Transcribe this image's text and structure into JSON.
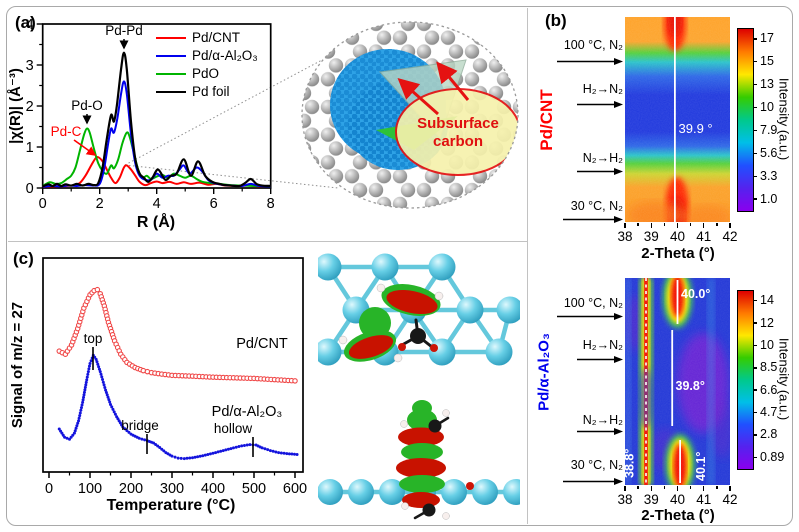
{
  "panels": {
    "a": {
      "tag": "(a)",
      "inset": {
        "line1": "Subsurface",
        "line2": "carbon",
        "text_color": "#e01010"
      }
    },
    "b": {
      "tag": "(b)"
    },
    "c": {
      "tag": "(c)"
    }
  },
  "chart_data": [
    {
      "id": "exafs",
      "type": "line",
      "panel": "a",
      "xlabel": "R (Å)",
      "ylabel": "|χ(R)| (Å⁻³)",
      "xlim": [
        0,
        8
      ],
      "ylim": [
        0,
        4
      ],
      "xticks": [
        0,
        2,
        4,
        6,
        8
      ],
      "yticks": [
        0,
        1,
        2,
        3,
        4
      ],
      "legend_position": "top-right",
      "series": [
        {
          "name": "Pd/CNT",
          "color": "#ff0000",
          "points": [
            [
              0,
              0.03
            ],
            [
              0.4,
              0.04
            ],
            [
              0.8,
              0.05
            ],
            [
              1.1,
              0.07
            ],
            [
              1.3,
              0.12
            ],
            [
              1.5,
              0.3
            ],
            [
              1.7,
              0.55
            ],
            [
              1.85,
              0.72
            ],
            [
              1.95,
              0.75
            ],
            [
              2.1,
              0.65
            ],
            [
              2.25,
              0.45
            ],
            [
              2.4,
              0.25
            ],
            [
              2.55,
              0.12
            ],
            [
              2.7,
              0.25
            ],
            [
              2.85,
              0.5
            ],
            [
              2.95,
              0.55
            ],
            [
              3.1,
              0.45
            ],
            [
              3.25,
              0.3
            ],
            [
              3.4,
              0.15
            ],
            [
              3.6,
              0.07
            ],
            [
              3.8,
              0.12
            ],
            [
              4.0,
              0.16
            ],
            [
              4.2,
              0.12
            ],
            [
              4.45,
              0.15
            ],
            [
              4.7,
              0.1
            ],
            [
              4.95,
              0.14
            ],
            [
              5.2,
              0.1
            ],
            [
              5.5,
              0.13
            ],
            [
              5.8,
              0.08
            ],
            [
              6.1,
              0.1
            ],
            [
              6.4,
              0.06
            ],
            [
              6.8,
              0.05
            ],
            [
              7.2,
              0.06
            ],
            [
              7.6,
              0.04
            ],
            [
              8,
              0.04
            ]
          ]
        },
        {
          "name": "Pd/α-Al₂O₃",
          "color": "#0000ee",
          "points": [
            [
              0,
              0.03
            ],
            [
              0.3,
              0.05
            ],
            [
              0.6,
              0.04
            ],
            [
              0.9,
              0.06
            ],
            [
              1.2,
              0.05
            ],
            [
              1.5,
              0.07
            ],
            [
              1.8,
              0.06
            ],
            [
              2.0,
              0.1
            ],
            [
              2.15,
              0.45
            ],
            [
              2.3,
              1.1
            ],
            [
              2.4,
              1.45
            ],
            [
              2.5,
              1.35
            ],
            [
              2.62,
              1.7
            ],
            [
              2.75,
              2.3
            ],
            [
              2.85,
              2.6
            ],
            [
              2.95,
              2.3
            ],
            [
              3.1,
              1.3
            ],
            [
              3.25,
              0.6
            ],
            [
              3.4,
              0.3
            ],
            [
              3.6,
              0.2
            ],
            [
              3.8,
              0.2
            ],
            [
              4.0,
              0.35
            ],
            [
              4.2,
              0.25
            ],
            [
              4.4,
              0.3
            ],
            [
              4.6,
              0.3
            ],
            [
              4.8,
              0.45
            ],
            [
              4.95,
              0.55
            ],
            [
              5.15,
              0.35
            ],
            [
              5.4,
              0.5
            ],
            [
              5.6,
              0.4
            ],
            [
              5.8,
              0.2
            ],
            [
              6.0,
              0.12
            ],
            [
              6.3,
              0.08
            ],
            [
              6.6,
              0.06
            ],
            [
              7.0,
              0.05
            ],
            [
              7.3,
              0.1
            ],
            [
              7.6,
              0.05
            ],
            [
              8,
              0.04
            ]
          ]
        },
        {
          "name": "PdO",
          "color": "#00b400",
          "points": [
            [
              0,
              0.05
            ],
            [
              0.25,
              0.14
            ],
            [
              0.45,
              0.1
            ],
            [
              0.65,
              0.12
            ],
            [
              0.85,
              0.22
            ],
            [
              1.0,
              0.3
            ],
            [
              1.15,
              0.5
            ],
            [
              1.3,
              0.9
            ],
            [
              1.45,
              1.3
            ],
            [
              1.55,
              1.45
            ],
            [
              1.65,
              1.35
            ],
            [
              1.8,
              0.95
            ],
            [
              1.95,
              0.6
            ],
            [
              2.1,
              0.42
            ],
            [
              2.25,
              0.35
            ],
            [
              2.4,
              0.55
            ],
            [
              2.5,
              0.48
            ],
            [
              2.65,
              0.7
            ],
            [
              2.8,
              1.1
            ],
            [
              2.95,
              1.35
            ],
            [
              3.05,
              1.25
            ],
            [
              3.2,
              0.85
            ],
            [
              3.35,
              0.45
            ],
            [
              3.5,
              0.25
            ],
            [
              3.65,
              0.3
            ],
            [
              3.8,
              0.22
            ],
            [
              4.0,
              0.28
            ],
            [
              4.2,
              0.32
            ],
            [
              4.4,
              0.25
            ],
            [
              4.6,
              0.35
            ],
            [
              4.8,
              0.3
            ],
            [
              5.0,
              0.25
            ],
            [
              5.2,
              0.3
            ],
            [
              5.4,
              0.22
            ],
            [
              5.6,
              0.15
            ],
            [
              5.9,
              0.12
            ],
            [
              6.2,
              0.1
            ],
            [
              6.6,
              0.07
            ],
            [
              7.0,
              0.06
            ],
            [
              7.5,
              0.05
            ],
            [
              8,
              0.04
            ]
          ]
        },
        {
          "name": "Pd foil",
          "color": "#000000",
          "points": [
            [
              0,
              0.04
            ],
            [
              0.2,
              0.09
            ],
            [
              0.35,
              0.05
            ],
            [
              0.5,
              0.1
            ],
            [
              0.65,
              0.05
            ],
            [
              0.8,
              0.09
            ],
            [
              1.0,
              0.06
            ],
            [
              1.2,
              0.1
            ],
            [
              1.4,
              0.06
            ],
            [
              1.6,
              0.1
            ],
            [
              1.8,
              0.07
            ],
            [
              1.95,
              0.12
            ],
            [
              2.1,
              0.5
            ],
            [
              2.25,
              1.2
            ],
            [
              2.4,
              1.78
            ],
            [
              2.5,
              1.62
            ],
            [
              2.6,
              2.0
            ],
            [
              2.75,
              2.9
            ],
            [
              2.85,
              3.3
            ],
            [
              2.95,
              2.9
            ],
            [
              3.1,
              1.6
            ],
            [
              3.25,
              0.7
            ],
            [
              3.4,
              0.35
            ],
            [
              3.55,
              0.25
            ],
            [
              3.7,
              0.15
            ],
            [
              3.85,
              0.25
            ],
            [
              4.05,
              0.45
            ],
            [
              4.3,
              0.2
            ],
            [
              4.5,
              0.3
            ],
            [
              4.7,
              0.35
            ],
            [
              4.95,
              0.7
            ],
            [
              5.2,
              0.3
            ],
            [
              5.45,
              0.65
            ],
            [
              5.7,
              0.3
            ],
            [
              5.95,
              0.15
            ],
            [
              6.2,
              0.1
            ],
            [
              6.4,
              0.07
            ],
            [
              6.6,
              0.06
            ],
            [
              6.9,
              0.05
            ],
            [
              7.1,
              0.12
            ],
            [
              7.3,
              0.22
            ],
            [
              7.5,
              0.1
            ],
            [
              7.7,
              0.06
            ],
            [
              8,
              0.05
            ]
          ]
        }
      ],
      "peak_annotations": [
        {
          "text": "Pd-Pd",
          "x": 2.85,
          "color": "#000000"
        },
        {
          "text": "Pd-O",
          "x": 1.55,
          "color": "#000000"
        },
        {
          "text": "Pd-C",
          "x": 1.95,
          "color": "#ff0000"
        }
      ]
    },
    {
      "id": "xrd-pdcnt",
      "type": "heatmap",
      "panel": "b",
      "sample": "Pd/CNT",
      "sample_color": "#ff0000",
      "xlabel": "2-Theta (°)",
      "xlim": [
        38,
        42
      ],
      "xticks": [
        38,
        39,
        40,
        41,
        42
      ],
      "conditions": [
        "100 °C, N₂",
        "H₂→N₂",
        "N₂→H₂",
        "30 °C, N₂"
      ],
      "marked_peaks": [
        {
          "label": "39.9 °",
          "two_theta": 39.9
        }
      ],
      "features": [
        "intense Pd(111) reflection near 39.9° (red) under N₂ segments at top and bottom",
        "intensity collapses to low (blue) band in the middle H₂ segment"
      ],
      "colorbar": {
        "label": "Intensity (a.u.)",
        "ticks": [
          "17",
          "15",
          "13",
          "10",
          "7.9",
          "5.6",
          "3.3",
          "1.0"
        ],
        "colors_top_to_bottom": [
          "#dd0000",
          "#ff7a00",
          "#ffe800",
          "#35cc00",
          "#00c98c",
          "#00bfe8",
          "#2050ff",
          "#5522ee",
          "#8a00ee"
        ]
      }
    },
    {
      "id": "xrd-pdalumina",
      "type": "heatmap",
      "panel": "b",
      "sample": "Pd/α-Al₂O₃",
      "sample_color": "#0000ee",
      "xlabel": "2-Theta (°)",
      "xlim": [
        38,
        42
      ],
      "xticks": [
        38,
        39,
        40,
        41,
        42
      ],
      "conditions": [
        "100 °C, N₂",
        "H₂→N₂",
        "N₂→H₂",
        "30 °C, N₂"
      ],
      "marked_peaks": [
        {
          "label": "40.0°",
          "two_theta": 40.0
        },
        {
          "label": "39.8°",
          "two_theta": 39.8
        },
        {
          "label": "38.8°",
          "two_theta": 38.8
        },
        {
          "label": "40.1°",
          "two_theta": 40.1
        }
      ],
      "features": [
        "sharp α-Al₂O₃ line at 38.8° persists through all segments",
        "Pd(111) spot at 40.0–40.1° under N₂, shifted to 39.8° in H₂ segment"
      ],
      "colorbar": {
        "label": "Intensity (a.u.)",
        "ticks": [
          "14",
          "12",
          "10",
          "8.5",
          "6.6",
          "4.7",
          "2.8",
          "0.89"
        ],
        "colors_top_to_bottom": [
          "#dd0000",
          "#ff7a00",
          "#ffe800",
          "#35cc00",
          "#00c98c",
          "#00bfe8",
          "#2050ff",
          "#5522ee",
          "#8a00ee"
        ]
      }
    },
    {
      "id": "tpd",
      "type": "scatter",
      "panel": "c",
      "xlabel": "Temperature (°C)",
      "ylabel": "Signal of m/z = 27",
      "xlim": [
        0,
        620
      ],
      "ylim": [
        0,
        1.08
      ],
      "xticks": [
        0,
        100,
        200,
        300,
        400,
        500,
        600
      ],
      "series": [
        {
          "name": "Pd/CNT",
          "color": "#f04848",
          "marker": "open-circle",
          "points": [
            [
              25,
              0.57
            ],
            [
              40,
              0.555
            ],
            [
              55,
              0.6
            ],
            [
              70,
              0.68
            ],
            [
              85,
              0.78
            ],
            [
              100,
              0.845
            ],
            [
              110,
              0.865
            ],
            [
              118,
              0.87
            ],
            [
              125,
              0.85
            ],
            [
              135,
              0.79
            ],
            [
              145,
              0.71
            ],
            [
              160,
              0.62
            ],
            [
              175,
              0.555
            ],
            [
              190,
              0.515
            ],
            [
              210,
              0.49
            ],
            [
              230,
              0.475
            ],
            [
              250,
              0.465
            ],
            [
              275,
              0.458
            ],
            [
              300,
              0.452
            ],
            [
              350,
              0.448
            ],
            [
              400,
              0.443
            ],
            [
              450,
              0.44
            ],
            [
              500,
              0.437
            ],
            [
              550,
              0.431
            ],
            [
              600,
              0.425
            ]
          ]
        },
        {
          "name": "Pd/α-Al₂O₃",
          "color": "#1414dd",
          "marker": "dot",
          "points": [
            [
              25,
              0.19
            ],
            [
              38,
              0.15
            ],
            [
              50,
              0.14
            ],
            [
              62,
              0.17
            ],
            [
              72,
              0.23
            ],
            [
              82,
              0.32
            ],
            [
              92,
              0.43
            ],
            [
              100,
              0.51
            ],
            [
              108,
              0.55
            ],
            [
              115,
              0.53
            ],
            [
              125,
              0.47
            ],
            [
              138,
              0.38
            ],
            [
              150,
              0.31
            ],
            [
              165,
              0.25
            ],
            [
              180,
              0.2
            ],
            [
              200,
              0.165
            ],
            [
              220,
              0.145
            ],
            [
              240,
              0.133
            ],
            [
              255,
              0.122
            ],
            [
              270,
              0.1
            ],
            [
              285,
              0.075
            ],
            [
              300,
              0.058
            ],
            [
              315,
              0.048
            ],
            [
              330,
              0.046
            ],
            [
              350,
              0.05
            ],
            [
              375,
              0.06
            ],
            [
              400,
              0.072
            ],
            [
              425,
              0.085
            ],
            [
              450,
              0.098
            ],
            [
              470,
              0.108
            ],
            [
              490,
              0.114
            ],
            [
              505,
              0.112
            ],
            [
              520,
              0.098
            ],
            [
              540,
              0.085
            ],
            [
              560,
              0.075
            ],
            [
              580,
              0.07
            ],
            [
              605,
              0.066
            ]
          ]
        }
      ],
      "site_annotations": [
        {
          "text": "top",
          "temperature": 107
        },
        {
          "text": "bridge",
          "temperature": 240
        },
        {
          "text": "hollow",
          "temperature": 497
        }
      ]
    }
  ]
}
